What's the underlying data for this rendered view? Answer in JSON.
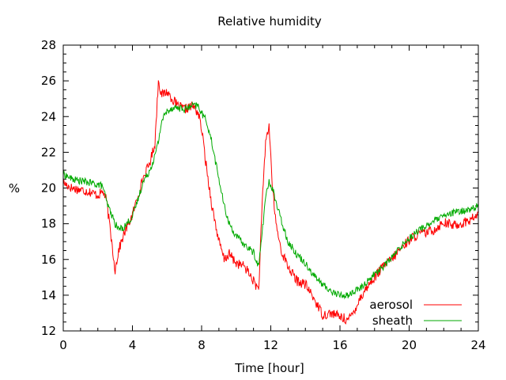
{
  "chart_data": {
    "type": "line",
    "title": "Relative humidity",
    "xlabel": "Time [hour]",
    "ylabel": "%",
    "xlim": [
      0,
      24
    ],
    "ylim": [
      12,
      28
    ],
    "xticks": [
      0,
      4,
      8,
      12,
      16,
      20,
      24
    ],
    "yticks": [
      12,
      14,
      16,
      18,
      20,
      22,
      24,
      26,
      28
    ],
    "grid": false,
    "legend_position": "bottom-right",
    "series": [
      {
        "name": "aerosol",
        "color": "#ff0000",
        "points": [
          [
            0,
            20.3
          ],
          [
            0.5,
            20.0
          ],
          [
            1.0,
            19.9
          ],
          [
            1.5,
            19.8
          ],
          [
            2.0,
            19.6
          ],
          [
            2.3,
            19.8
          ],
          [
            2.5,
            19.3
          ],
          [
            2.8,
            17.0
          ],
          [
            3.0,
            15.4
          ],
          [
            3.2,
            16.5
          ],
          [
            3.5,
            17.4
          ],
          [
            4.0,
            18.5
          ],
          [
            4.3,
            19.5
          ],
          [
            4.6,
            20.5
          ],
          [
            5.0,
            21.4
          ],
          [
            5.3,
            22.5
          ],
          [
            5.5,
            26.0
          ],
          [
            5.7,
            25.2
          ],
          [
            6.0,
            25.4
          ],
          [
            6.3,
            25.0
          ],
          [
            6.6,
            24.6
          ],
          [
            7.0,
            24.4
          ],
          [
            7.5,
            24.6
          ],
          [
            7.8,
            24.2
          ],
          [
            8.0,
            23.3
          ],
          [
            8.3,
            21.0
          ],
          [
            8.6,
            19.0
          ],
          [
            9.0,
            17.0
          ],
          [
            9.3,
            16.0
          ],
          [
            9.6,
            16.3
          ],
          [
            10.0,
            15.8
          ],
          [
            10.5,
            15.6
          ],
          [
            11.0,
            14.8
          ],
          [
            11.3,
            14.3
          ],
          [
            11.5,
            19.0
          ],
          [
            11.7,
            22.6
          ],
          [
            11.9,
            23.5
          ],
          [
            12.1,
            20.0
          ],
          [
            12.3,
            18.0
          ],
          [
            12.6,
            16.5
          ],
          [
            13.0,
            15.6
          ],
          [
            13.5,
            14.8
          ],
          [
            14.0,
            14.6
          ],
          [
            14.5,
            13.8
          ],
          [
            15.0,
            12.9
          ],
          [
            15.5,
            13.0
          ],
          [
            16.0,
            12.8
          ],
          [
            16.5,
            12.6
          ],
          [
            16.8,
            13.1
          ],
          [
            17.2,
            13.9
          ],
          [
            17.6,
            14.5
          ],
          [
            18.0,
            15.0
          ],
          [
            18.5,
            15.6
          ],
          [
            19.0,
            16.0
          ],
          [
            19.5,
            16.6
          ],
          [
            20.0,
            17.1
          ],
          [
            20.5,
            17.4
          ],
          [
            21.0,
            17.5
          ],
          [
            21.5,
            17.7
          ],
          [
            22.0,
            18.1
          ],
          [
            22.5,
            17.9
          ],
          [
            23.0,
            18.0
          ],
          [
            23.5,
            18.2
          ],
          [
            24.0,
            18.5
          ]
        ]
      },
      {
        "name": "sheath",
        "color": "#00aa00",
        "points": [
          [
            0,
            20.8
          ],
          [
            0.5,
            20.5
          ],
          [
            1.0,
            20.4
          ],
          [
            1.5,
            20.3
          ],
          [
            2.0,
            20.2
          ],
          [
            2.3,
            20.1
          ],
          [
            2.5,
            19.2
          ],
          [
            2.8,
            18.5
          ],
          [
            3.0,
            18.0
          ],
          [
            3.2,
            17.7
          ],
          [
            3.5,
            17.8
          ],
          [
            4.0,
            18.4
          ],
          [
            4.3,
            19.3
          ],
          [
            4.6,
            20.3
          ],
          [
            5.0,
            21.0
          ],
          [
            5.3,
            21.8
          ],
          [
            5.5,
            22.6
          ],
          [
            5.7,
            23.8
          ],
          [
            6.0,
            24.3
          ],
          [
            6.3,
            24.5
          ],
          [
            6.6,
            24.5
          ],
          [
            7.0,
            24.4
          ],
          [
            7.5,
            24.6
          ],
          [
            7.8,
            24.6
          ],
          [
            8.0,
            24.2
          ],
          [
            8.3,
            23.7
          ],
          [
            8.6,
            22.5
          ],
          [
            9.0,
            20.5
          ],
          [
            9.3,
            19.0
          ],
          [
            9.6,
            18.0
          ],
          [
            10.0,
            17.3
          ],
          [
            10.5,
            16.8
          ],
          [
            11.0,
            16.4
          ],
          [
            11.3,
            15.6
          ],
          [
            11.5,
            17.5
          ],
          [
            11.7,
            19.5
          ],
          [
            11.9,
            20.3
          ],
          [
            12.1,
            20.0
          ],
          [
            12.3,
            19.2
          ],
          [
            12.6,
            18.2
          ],
          [
            13.0,
            17.0
          ],
          [
            13.5,
            16.3
          ],
          [
            14.0,
            15.8
          ],
          [
            14.5,
            15.1
          ],
          [
            15.0,
            14.6
          ],
          [
            15.5,
            14.2
          ],
          [
            16.0,
            14.0
          ],
          [
            16.5,
            14.0
          ],
          [
            16.8,
            14.2
          ],
          [
            17.2,
            14.4
          ],
          [
            17.6,
            14.8
          ],
          [
            18.0,
            15.2
          ],
          [
            18.5,
            15.6
          ],
          [
            19.0,
            16.1
          ],
          [
            19.5,
            16.7
          ],
          [
            20.0,
            17.2
          ],
          [
            20.5,
            17.6
          ],
          [
            21.0,
            17.9
          ],
          [
            21.5,
            18.2
          ],
          [
            22.0,
            18.4
          ],
          [
            22.5,
            18.6
          ],
          [
            23.0,
            18.7
          ],
          [
            23.5,
            18.8
          ],
          [
            24.0,
            19.0
          ]
        ]
      }
    ]
  }
}
